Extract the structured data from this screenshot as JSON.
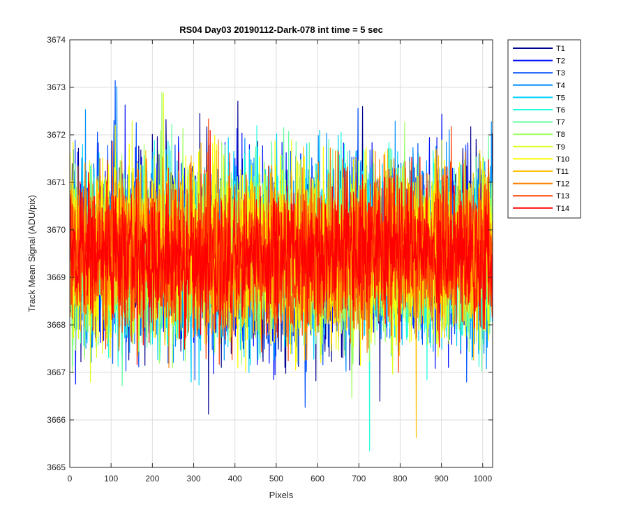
{
  "chart_data": {
    "type": "line",
    "title": "RS04 Day03 20190112-Dark-078 int time = 5 sec",
    "xlabel": "Pixels",
    "ylabel": "Track Mean Signal (ADU/pix)",
    "xlim": [
      0,
      1024
    ],
    "ylim": [
      3665,
      3674
    ],
    "xticks": [
      0,
      100,
      200,
      300,
      400,
      500,
      600,
      700,
      800,
      900,
      1000
    ],
    "yticks": [
      3665,
      3666,
      3667,
      3668,
      3669,
      3670,
      3671,
      3672,
      3673,
      3674
    ],
    "grid": true,
    "legend_position": "outside-top-right",
    "x_range": [
      1,
      1024
    ],
    "mean_level": 3669.5,
    "series": [
      {
        "name": "T1",
        "color": "#00008f",
        "spread": 0.95
      },
      {
        "name": "T2",
        "color": "#0010ff",
        "spread": 0.95
      },
      {
        "name": "T3",
        "color": "#0050ff",
        "spread": 0.92
      },
      {
        "name": "T4",
        "color": "#0090ff",
        "spread": 0.92
      },
      {
        "name": "T5",
        "color": "#00d0ff",
        "spread": 0.9
      },
      {
        "name": "T6",
        "color": "#20ffdf",
        "spread": 0.9
      },
      {
        "name": "T7",
        "color": "#60ff9f",
        "spread": 0.88
      },
      {
        "name": "T8",
        "color": "#9fff60",
        "spread": 0.88
      },
      {
        "name": "T9",
        "color": "#dfff20",
        "spread": 0.86
      },
      {
        "name": "T10",
        "color": "#ffff00",
        "spread": 0.86
      },
      {
        "name": "T11",
        "color": "#ffbf00",
        "spread": 0.82
      },
      {
        "name": "T12",
        "color": "#ff8000",
        "spread": 0.8
      },
      {
        "name": "T13",
        "color": "#ff4000",
        "spread": 0.78
      },
      {
        "name": "T14",
        "color": "#ff0000",
        "spread": 0.72
      }
    ]
  }
}
